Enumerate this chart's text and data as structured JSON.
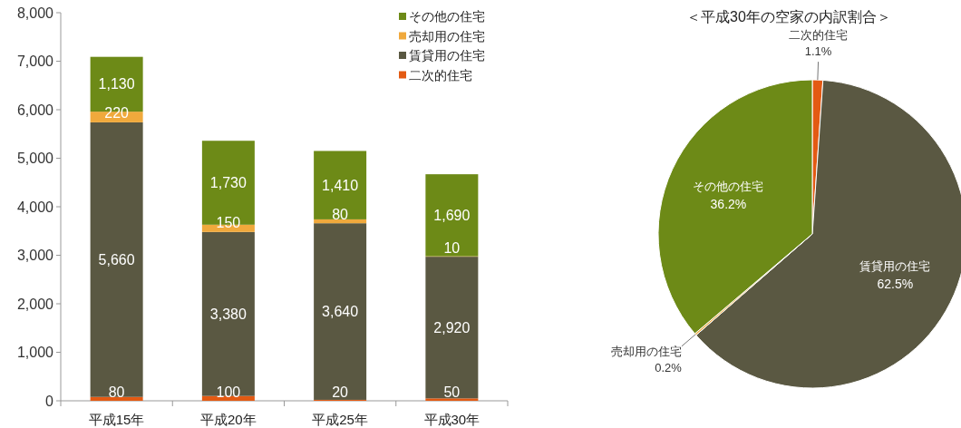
{
  "chart_data": [
    {
      "type": "bar",
      "stacked": true,
      "categories": [
        "平成15年",
        "平成20年",
        "平成25年",
        "平成30年"
      ],
      "series": [
        {
          "name": "二次的住宅",
          "color": "#e35a13",
          "values": [
            80,
            100,
            20,
            50
          ],
          "value_labels": [
            "80",
            "100",
            "20",
            "50"
          ]
        },
        {
          "name": "賃貸用の住宅",
          "color": "#5a5842",
          "values": [
            5660,
            3380,
            3640,
            2920
          ],
          "value_labels": [
            "5,660",
            "3,380",
            "3,640",
            "2,920"
          ]
        },
        {
          "name": "売却用の住宅",
          "color": "#f0a93c",
          "values": [
            220,
            150,
            80,
            10
          ],
          "value_labels": [
            "220",
            "150",
            "80",
            "10"
          ]
        },
        {
          "name": "その他の住宅",
          "color": "#6d8a17",
          "values": [
            1130,
            1730,
            1410,
            1690
          ],
          "value_labels": [
            "1,130",
            "1,730",
            "1,410",
            "1,690"
          ]
        }
      ],
      "ylim": [
        0,
        8000
      ],
      "yticks": [
        {
          "value": 0,
          "label": "0"
        },
        {
          "value": 1000,
          "label": "1,000"
        },
        {
          "value": 2000,
          "label": "2,000"
        },
        {
          "value": 3000,
          "label": "3,000"
        },
        {
          "value": 4000,
          "label": "4,000"
        },
        {
          "value": 5000,
          "label": "5,000"
        },
        {
          "value": 6000,
          "label": "6,000"
        },
        {
          "value": 7000,
          "label": "7,000"
        },
        {
          "value": 8000,
          "label": "8,000"
        }
      ],
      "legend": "top right"
    },
    {
      "type": "pie",
      "title": "＜平成30年の空家の内訳割合＞",
      "categories": [
        "二次的住宅",
        "賃貸用の住宅",
        "売却用の住宅",
        "その他の住宅"
      ],
      "values": [
        1.1,
        62.5,
        0.2,
        36.2
      ],
      "colors": [
        "#e35a13",
        "#5a5842",
        "#f0a93c",
        "#6d8a17"
      ],
      "value_labels": [
        "1.1%",
        "62.5%",
        "0.2%",
        "36.2%"
      ]
    }
  ]
}
